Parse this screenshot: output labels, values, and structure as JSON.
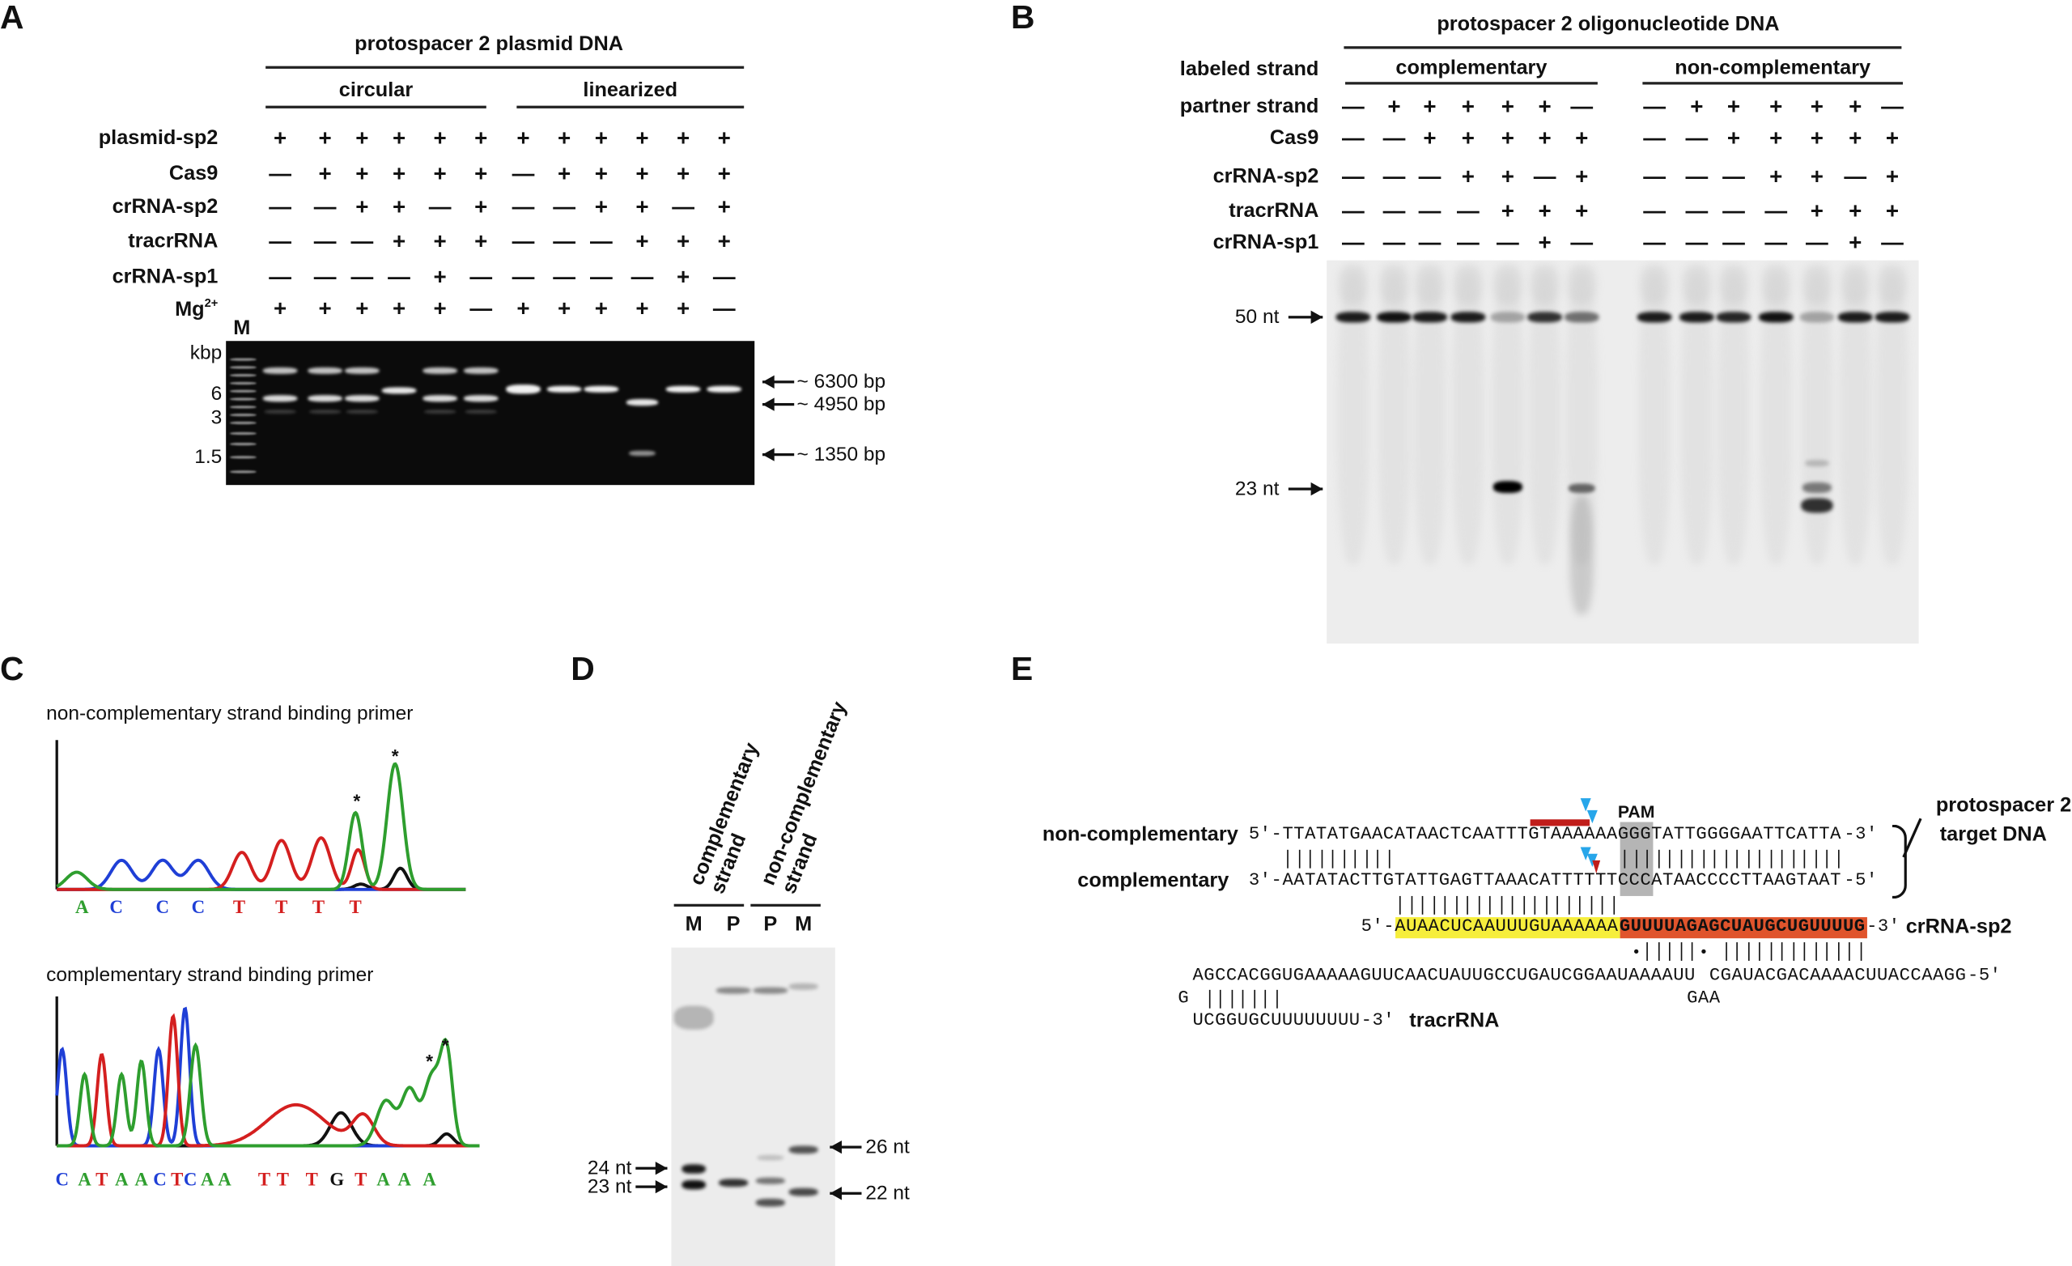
{
  "A": {
    "letter": "A",
    "title": "protospacer 2 plasmid DNA",
    "groups": [
      "circular",
      "linearized"
    ],
    "rows": [
      {
        "label": "plasmid-sp2",
        "values": [
          "+",
          "+",
          "+",
          "+",
          "+",
          "+",
          "+",
          "+",
          "+",
          "+",
          "+",
          "+"
        ]
      },
      {
        "label": "Cas9",
        "values": [
          "—",
          "+",
          "+",
          "+",
          "+",
          "+",
          "—",
          "+",
          "+",
          "+",
          "+",
          "+"
        ]
      },
      {
        "label": "crRNA-sp2",
        "values": [
          "—",
          "—",
          "+",
          "+",
          "—",
          "+",
          "—",
          "—",
          "+",
          "+",
          "—",
          "+"
        ]
      },
      {
        "label": "tracrRNA",
        "values": [
          "—",
          "—",
          "—",
          "+",
          "+",
          "+",
          "—",
          "—",
          "—",
          "+",
          "+",
          "+"
        ]
      },
      {
        "label": "crRNA-sp1",
        "values": [
          "—",
          "—",
          "—",
          "—",
          "+",
          "—",
          "—",
          "—",
          "—",
          "—",
          "+",
          "—"
        ]
      },
      {
        "label": "Mg",
        "label_sup": "2+",
        "values": [
          "+",
          "+",
          "+",
          "+",
          "+",
          "—",
          "+",
          "+",
          "+",
          "+",
          "+",
          "—"
        ]
      }
    ],
    "marker": "M",
    "unit": "kbp",
    "ticks": [
      "6",
      "3",
      "1.5"
    ],
    "band_labels": [
      "~ 6300 bp",
      "~ 4950 bp",
      "~ 1350 bp"
    ]
  },
  "B": {
    "letter": "B",
    "title": "protospacer 2 oligonucleotide DNA",
    "labeled_strand": "labeled strand",
    "groups": [
      "complementary",
      "non-complementary"
    ],
    "rows": [
      {
        "label": "partner strand",
        "values": [
          "—",
          "+",
          "+",
          "+",
          "+",
          "+",
          "—",
          "—",
          "+",
          "+",
          "+",
          "+",
          "+",
          "—"
        ]
      },
      {
        "label": "Cas9",
        "values": [
          "—",
          "—",
          "+",
          "+",
          "+",
          "+",
          "+",
          "—",
          "—",
          "+",
          "+",
          "+",
          "+",
          "+"
        ]
      },
      {
        "label": "crRNA-sp2",
        "values": [
          "—",
          "—",
          "—",
          "+",
          "+",
          "—",
          "+",
          "—",
          "—",
          "—",
          "+",
          "+",
          "—",
          "+"
        ]
      },
      {
        "label": "tracrRNA",
        "values": [
          "—",
          "—",
          "—",
          "—",
          "+",
          "+",
          "+",
          "—",
          "—",
          "—",
          "—",
          "+",
          "+",
          "+"
        ]
      },
      {
        "label": "crRNA-sp1",
        "values": [
          "—",
          "—",
          "—",
          "—",
          "—",
          "+",
          "—",
          "—",
          "—",
          "—",
          "—",
          "—",
          "+",
          "—"
        ]
      }
    ],
    "sizes": [
      "50 nt",
      "23 nt"
    ]
  },
  "C": {
    "letter": "C",
    "traces": [
      {
        "title": "non-complementary strand binding primer",
        "sequence": [
          "A",
          "C",
          "C",
          "C",
          "T",
          "T",
          "T",
          "T"
        ],
        "marks": [
          "*",
          "*"
        ]
      },
      {
        "title": "complementary strand binding primer",
        "sequence": [
          "C",
          "A",
          "T",
          "A",
          "A",
          "C",
          "T",
          "C",
          "A",
          "A",
          "T",
          "T",
          "T",
          "G",
          "T",
          "A",
          "A",
          "A"
        ],
        "marks": [
          "*",
          "*"
        ]
      }
    ],
    "base_colors": {
      "A": "#2e9e2e",
      "C": "#1f3fd6",
      "T": "#d41f1f",
      "G": "#111111"
    }
  },
  "D": {
    "letter": "D",
    "groups": [
      [
        "complementary",
        "strand"
      ],
      [
        "non-complementary",
        "strand"
      ]
    ],
    "lanes": [
      "M",
      "P",
      "P",
      "M"
    ],
    "sizes_left": [
      "24 nt",
      "23 nt"
    ],
    "sizes_right": [
      "26 nt",
      "22 nt"
    ]
  },
  "E": {
    "letter": "E",
    "non_complementary": {
      "label": "non-complementary",
      "prefix": "5′-",
      "seq": "TTATATGAACATAACTCAATTTGTAAAAAAGGGTATTGGGGAATTCATTA",
      "suffix": "-3′"
    },
    "complementary": {
      "label": "complementary",
      "prefix": "3′-",
      "seq": "AATATACTTGTATTGAGTTAAACATTTTTTCCCATAACCCCTTAAGTAAT",
      "suffix": "-5′"
    },
    "pam_label": "PAM",
    "target_label": [
      "protospacer 2",
      "target DNA"
    ],
    "crRNA": {
      "label": "crRNA-sp2",
      "prefix": "5′-",
      "spacer": "AUAACUCAAUUUGUAAAAAA",
      "repeat": "GUUUUAGAGCUAUGCUGUUUUG",
      "suffix": "-3′"
    },
    "tracrRNA": {
      "label": "tracrRNA",
      "line1": "AGCCACGGUGAAAAAGUUCAACUAUUGCCUGAUCGGAAUAAAAUU",
      "line1b": "CGAUACGACAAAACUUACCAAGG",
      "line1_suffix": "-5′",
      "loop1": "G",
      "loop2": "GAA",
      "tail": "UCGGUGCUUUUUUUU",
      "tail_suffix": "-3′"
    },
    "wobble_mark": "•",
    "colors": {
      "spacer": "#f6ee3c",
      "repeat": "#e0542c",
      "pam": "#b5b5b5",
      "cleavage": "#27a6ea",
      "cut_bar": "#c01d1a"
    }
  }
}
